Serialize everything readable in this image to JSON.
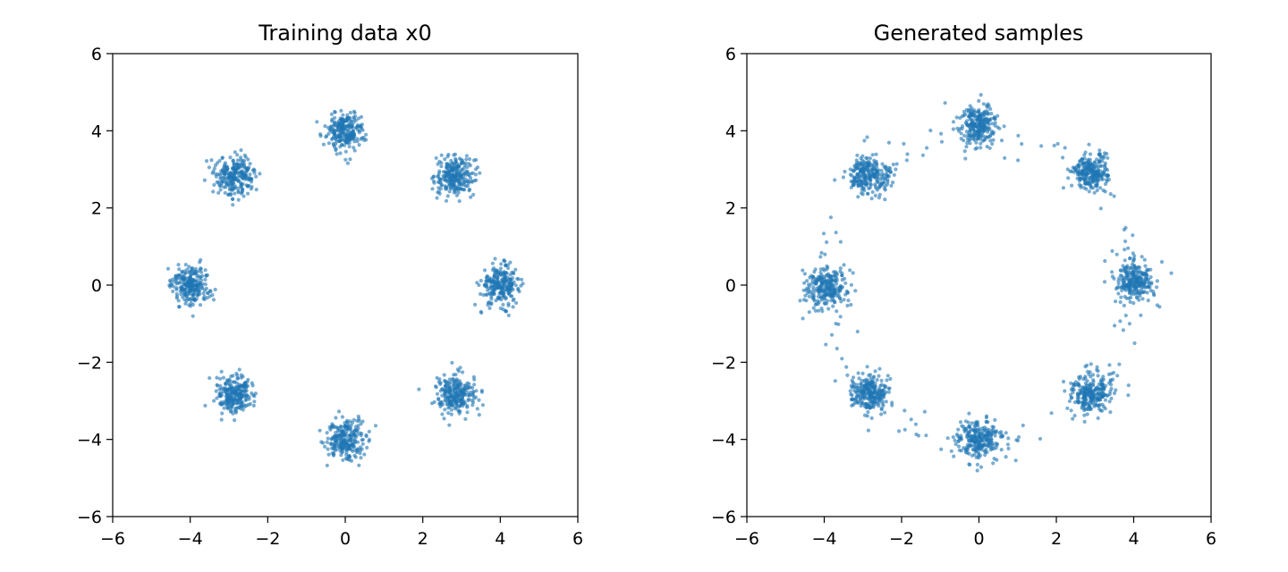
{
  "chart_data": [
    {
      "type": "scatter",
      "title": "Training data x0",
      "xlim": [
        -6,
        6
      ],
      "ylim": [
        -6,
        6
      ],
      "xticks": [
        -6,
        -4,
        -2,
        0,
        2,
        4,
        6
      ],
      "yticks": [
        -6,
        -4,
        -2,
        0,
        2,
        4,
        6
      ],
      "xtick_labels": [
        "−6",
        "−4",
        "−2",
        "0",
        "2",
        "4",
        "6"
      ],
      "ytick_labels": [
        "−6",
        "−4",
        "−2",
        "0",
        "2",
        "4",
        "6"
      ],
      "grid": false,
      "point_color": "#1f77b4",
      "point_alpha": 0.6,
      "clusters": [
        {
          "center": [
            4.0,
            0.0
          ],
          "std": 0.25
        },
        {
          "center": [
            2.83,
            2.83
          ],
          "std": 0.25
        },
        {
          "center": [
            0.0,
            4.0
          ],
          "std": 0.25
        },
        {
          "center": [
            -2.83,
            2.83
          ],
          "std": 0.25
        },
        {
          "center": [
            -4.0,
            0.0
          ],
          "std": 0.25
        },
        {
          "center": [
            -2.83,
            -2.83
          ],
          "std": 0.25
        },
        {
          "center": [
            0.0,
            -4.0
          ],
          "std": 0.25
        },
        {
          "center": [
            2.83,
            -2.83
          ],
          "std": 0.25
        }
      ],
      "points_per_cluster": 250,
      "ring_points": 0
    },
    {
      "type": "scatter",
      "title": "Generated samples",
      "xlim": [
        -6,
        6
      ],
      "ylim": [
        -6,
        6
      ],
      "xticks": [
        -6,
        -4,
        -2,
        0,
        2,
        4,
        6
      ],
      "yticks": [
        -6,
        -4,
        -2,
        0,
        2,
        4,
        6
      ],
      "xtick_labels": [
        "−6",
        "−4",
        "−2",
        "0",
        "2",
        "4",
        "6"
      ],
      "ytick_labels": [
        "−6",
        "−4",
        "−2",
        "0",
        "2",
        "4",
        "6"
      ],
      "grid": false,
      "point_color": "#1f77b4",
      "point_alpha": 0.6,
      "clusters": [
        {
          "center": [
            4.0,
            0.1
          ],
          "std": 0.25
        },
        {
          "center": [
            2.9,
            2.95
          ],
          "std": 0.22
        },
        {
          "center": [
            0.0,
            4.15
          ],
          "std": 0.25
        },
        {
          "center": [
            -2.85,
            2.85
          ],
          "std": 0.25
        },
        {
          "center": [
            -3.95,
            -0.05
          ],
          "std": 0.27
        },
        {
          "center": [
            -2.85,
            -2.8
          ],
          "std": 0.25
        },
        {
          "center": [
            0.0,
            -4.0
          ],
          "std": 0.25
        },
        {
          "center": [
            2.9,
            -2.8
          ],
          "std": 0.25
        }
      ],
      "points_per_cluster": 250,
      "ring_points": 140,
      "ring_radius": 4.0
    }
  ]
}
